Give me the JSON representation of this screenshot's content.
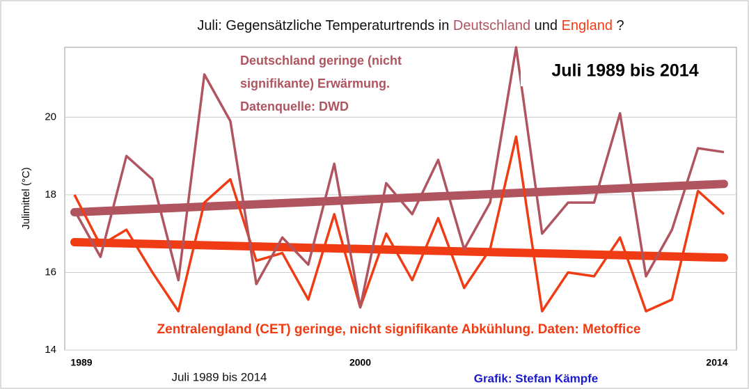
{
  "chart_data": {
    "type": "line",
    "title_parts": [
      {
        "text": "Juli: Gegensätzliche Temperaturtrends in ",
        "color": "#111111"
      },
      {
        "text": "Deutschland",
        "color": "#b05560"
      },
      {
        "text": " und ",
        "color": "#111111"
      },
      {
        "text": "England",
        "color": "#f03c14"
      },
      {
        "text": " ?",
        "color": "#111111"
      }
    ],
    "y_label": "Julimittel (°C)",
    "annotations": {
      "germany": [
        "Deutschland geringe (nicht",
        "signifikante) Erwärmung.",
        "Datenquelle: DWD"
      ],
      "period_box": "Juli 1989 bis 2014",
      "england": "Zentralengland (CET) geringe, nicht signifikante Abkühlung. Daten: Metoffice",
      "period_bottom": "Juli 1989 bis 2014",
      "credit": "Grafik: Stefan Kämpfe"
    },
    "x": [
      1989,
      1990,
      1991,
      1992,
      1993,
      1994,
      1995,
      1996,
      1997,
      1998,
      1999,
      2000,
      2001,
      2002,
      2003,
      2004,
      2005,
      2006,
      2007,
      2008,
      2009,
      2010,
      2011,
      2012,
      2013,
      2014
    ],
    "xlim": [
      1989,
      2014
    ],
    "xticks": [
      1989,
      2000,
      2014
    ],
    "ylim": [
      14,
      21.8
    ],
    "yticks": [
      14,
      16,
      18,
      20
    ],
    "grid": true,
    "series": [
      {
        "color": "#b05560",
        "values": [
          17.6,
          16.4,
          19.0,
          18.4,
          15.8,
          21.1,
          19.9,
          15.7,
          16.9,
          16.2,
          18.8,
          15.1,
          18.3,
          17.5,
          18.9,
          16.6,
          17.8,
          21.8,
          17.0,
          17.8,
          17.8,
          20.1,
          15.9,
          17.1,
          19.2,
          19.1
        ],
        "trend": [
          17.55,
          18.28
        ]
      },
      {
        "color": "#f03c14",
        "values": [
          18.0,
          16.7,
          17.1,
          16.0,
          15.0,
          17.8,
          18.4,
          16.3,
          16.5,
          15.3,
          17.5,
          15.1,
          17.0,
          15.8,
          17.4,
          15.6,
          16.6,
          19.5,
          15.0,
          16.0,
          15.9,
          16.9,
          15.0,
          15.3,
          18.1,
          17.5
        ],
        "trend": [
          16.78,
          16.38
        ]
      }
    ]
  }
}
